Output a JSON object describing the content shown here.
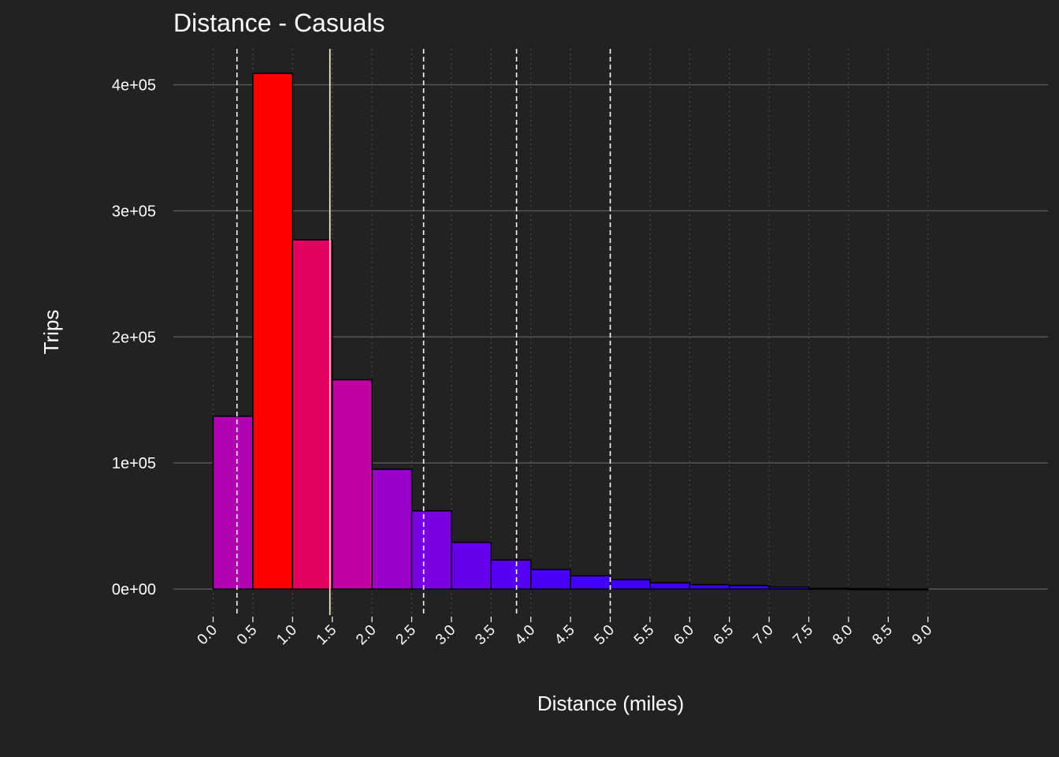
{
  "chart_data": {
    "type": "bar",
    "title": "Distance - Casuals",
    "xlabel": "Distance (miles)",
    "ylabel": "Trips",
    "bin_width": 0.5,
    "bin_starts": [
      0.0,
      0.5,
      1.0,
      1.5,
      2.0,
      2.5,
      3.0,
      3.5,
      4.0,
      4.5,
      5.0,
      5.5,
      6.0,
      6.5,
      7.0,
      7.5,
      8.0,
      8.5
    ],
    "values": [
      137000,
      409000,
      277000,
      166000,
      95000,
      62000,
      37000,
      23000,
      15500,
      10500,
      7500,
      5000,
      3500,
      2800,
      1600,
      600,
      300,
      100
    ],
    "bar_colors": [
      "#b000b0",
      "#ff0000",
      "#e20060",
      "#c000a0",
      "#9900c9",
      "#7a00e1",
      "#6600ec",
      "#5500f3",
      "#4800f6",
      "#4300f8",
      "#3e00fa",
      "#3a00fb",
      "#3600fc",
      "#3300fd",
      "#3100fd",
      "#2f00fe",
      "#2d00fe",
      "#2b00fe"
    ],
    "x_ticks": [
      "0.0",
      "0.5",
      "1.0",
      "1.5",
      "2.0",
      "2.5",
      "3.0",
      "3.5",
      "4.0",
      "4.5",
      "5.0",
      "5.5",
      "6.0",
      "6.5",
      "7.0",
      "7.5",
      "8.0",
      "8.5",
      "9.0"
    ],
    "y_ticks": [
      "0e+00",
      "1e+05",
      "2e+05",
      "3e+05",
      "4e+05"
    ],
    "y_tick_values": [
      0,
      100000,
      200000,
      300000,
      400000
    ],
    "ylim": [
      -20000,
      430000
    ],
    "xlim": [
      -0.3,
      10.6
    ],
    "reference_lines": [
      {
        "x": 0.3,
        "style": "dashed",
        "color": "#ffffff"
      },
      {
        "x": 1.47,
        "style": "solid",
        "color": "#ffffe0"
      },
      {
        "x": 2.65,
        "style": "dashed",
        "color": "#ffffff"
      },
      {
        "x": 3.82,
        "style": "dashed",
        "color": "#ffffff"
      },
      {
        "x": 5.0,
        "style": "dashed",
        "color": "#ffffff"
      }
    ],
    "grid": true,
    "legend": "none",
    "colors": {
      "background": "#222222",
      "grid_major": "#555555",
      "grid_minor": "#4a4a4a",
      "text": "#ffffff",
      "bar_border": "#000000"
    }
  }
}
